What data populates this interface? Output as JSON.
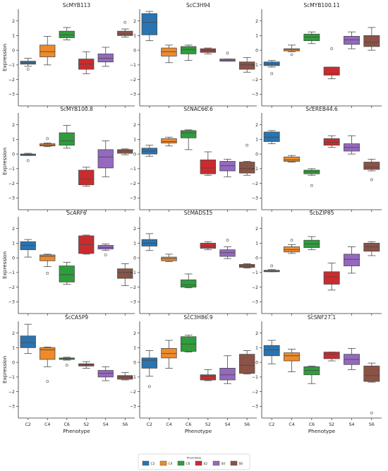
{
  "figure": {
    "y_axis_label": "Expression",
    "x_axis_label": "Phenotype",
    "legend_title": "Phenotype"
  },
  "colors": {
    "C2": "#2a74b0",
    "C4": "#ef8a2a",
    "C6": "#2e9e3b",
    "S2": "#cc2b2e",
    "S4": "#9469be",
    "S6": "#8a5346"
  },
  "chart_data": {
    "type": "box",
    "categories": [
      "C2",
      "C4",
      "C6",
      "S2",
      "S4",
      "S6"
    ],
    "ylim": [
      -3.8,
      2.8
    ],
    "yticks": [
      2,
      1,
      0,
      -1,
      -2,
      -3
    ],
    "grid": false,
    "legend": {
      "position": "bottom-center",
      "entries": [
        "C2",
        "C4",
        "C6",
        "S2",
        "S4",
        "S6"
      ]
    },
    "panels": [
      {
        "title": "ScMYB113",
        "boxes": [
          {
            "q1": -0.95,
            "median": -0.85,
            "q3": -0.75,
            "whislo": -1.1,
            "whishi": -0.55,
            "fliers": [
              -1.3
            ]
          },
          {
            "q1": -0.45,
            "median": -0.1,
            "q3": 0.35,
            "whislo": -1.0,
            "whishi": 0.95,
            "fliers": []
          },
          {
            "q1": 0.85,
            "median": 1.05,
            "q3": 1.3,
            "whislo": 0.7,
            "whishi": 1.55,
            "fliers": []
          },
          {
            "q1": -1.3,
            "median": -0.95,
            "q3": -0.6,
            "whislo": -1.6,
            "whishi": -0.1,
            "fliers": []
          },
          {
            "q1": -0.8,
            "median": -0.55,
            "q3": -0.25,
            "whislo": -1.1,
            "whishi": 0.2,
            "fliers": []
          },
          {
            "q1": 1.0,
            "median": 1.1,
            "q3": 1.3,
            "whislo": 0.9,
            "whishi": 1.45,
            "fliers": [
              1.9
            ]
          }
        ]
      },
      {
        "title": "ScC3H94",
        "boxes": [
          {
            "q1": 1.05,
            "median": 1.9,
            "q3": 2.5,
            "whislo": 0.65,
            "whishi": 2.65,
            "fliers": []
          },
          {
            "q1": -0.4,
            "median": -0.1,
            "q3": 0.15,
            "whislo": -0.85,
            "whishi": 0.35,
            "fliers": []
          },
          {
            "q1": -0.25,
            "median": 0.05,
            "q3": 0.25,
            "whislo": -0.7,
            "whishi": 0.35,
            "fliers": []
          },
          {
            "q1": -0.15,
            "median": 0.0,
            "q3": 0.1,
            "whislo": -0.25,
            "whishi": 0.15,
            "fliers": []
          },
          {
            "q1": -0.75,
            "median": -0.68,
            "q3": -0.6,
            "whislo": -0.75,
            "whishi": -0.6,
            "fliers": [
              -0.2
            ]
          },
          {
            "q1": -1.3,
            "median": -1.0,
            "q3": -0.8,
            "whislo": -1.5,
            "whishi": -0.5,
            "fliers": []
          }
        ]
      },
      {
        "title": "ScMYB100.11",
        "boxes": [
          {
            "q1": -1.05,
            "median": -0.95,
            "q3": -0.8,
            "whislo": -1.15,
            "whishi": -0.7,
            "fliers": [
              -1.6
            ]
          },
          {
            "q1": -0.05,
            "median": 0.05,
            "q3": 0.1,
            "whislo": -0.1,
            "whishi": 0.35,
            "fliers": [
              -0.3
            ]
          },
          {
            "q1": 0.65,
            "median": 0.9,
            "q3": 1.1,
            "whislo": 0.45,
            "whishi": 1.25,
            "fliers": []
          },
          {
            "q1": -1.7,
            "median": -1.6,
            "q3": -1.15,
            "whislo": -1.95,
            "whishi": -1.15,
            "fliers": [
              0.1
            ]
          },
          {
            "q1": 0.4,
            "median": 0.7,
            "q3": 0.95,
            "whislo": 0.1,
            "whishi": 1.25,
            "fliers": []
          },
          {
            "q1": 0.25,
            "median": 0.55,
            "q3": 1.0,
            "whislo": 0.0,
            "whishi": 1.55,
            "fliers": []
          }
        ]
      },
      {
        "title": "ScMYB100.8",
        "boxes": [
          {
            "q1": -0.1,
            "median": -0.05,
            "q3": 0.0,
            "whislo": -0.1,
            "whishi": 0.05,
            "fliers": [
              -0.45
            ]
          },
          {
            "q1": 0.55,
            "median": 0.62,
            "q3": 0.7,
            "whislo": 0.5,
            "whishi": 0.75,
            "fliers": [
              1.05
            ]
          },
          {
            "q1": 0.6,
            "median": 0.9,
            "q3": 1.45,
            "whislo": 0.4,
            "whishi": 1.95,
            "fliers": []
          },
          {
            "q1": -2.1,
            "median": -1.7,
            "q3": -1.1,
            "whislo": -2.2,
            "whishi": -0.9,
            "fliers": []
          },
          {
            "q1": -0.95,
            "median": -0.2,
            "q3": 0.3,
            "whislo": -1.55,
            "whishi": 0.9,
            "fliers": []
          },
          {
            "q1": 0.05,
            "median": 0.2,
            "q3": 0.3,
            "whislo": -0.05,
            "whishi": 0.35,
            "fliers": []
          }
        ]
      },
      {
        "title": "ScNAC66.6",
        "boxes": [
          {
            "q1": 0.0,
            "median": 0.2,
            "q3": 0.4,
            "whislo": -0.15,
            "whishi": 0.6,
            "fliers": []
          },
          {
            "q1": 0.75,
            "median": 0.85,
            "q3": 1.05,
            "whislo": 0.55,
            "whishi": 1.15,
            "fliers": []
          },
          {
            "q1": 1.1,
            "median": 1.45,
            "q3": 1.6,
            "whislo": 0.3,
            "whishi": 1.65,
            "fliers": []
          },
          {
            "q1": -1.35,
            "median": -0.95,
            "q3": -0.4,
            "whislo": -1.45,
            "whishi": 0.15,
            "fliers": []
          },
          {
            "q1": -1.15,
            "median": -0.8,
            "q3": -0.5,
            "whislo": -1.55,
            "whishi": -0.35,
            "fliers": []
          },
          {
            "q1": -1.3,
            "median": -1.0,
            "q3": -0.55,
            "whislo": -1.45,
            "whishi": -0.5,
            "fliers": [
              0.6
            ]
          }
        ]
      },
      {
        "title": "ScEREB44.6",
        "boxes": [
          {
            "q1": 0.85,
            "median": 1.15,
            "q3": 1.5,
            "whislo": 0.7,
            "whishi": 1.6,
            "fliers": []
          },
          {
            "q1": -0.5,
            "median": -0.4,
            "q3": -0.2,
            "whislo": -0.55,
            "whishi": -0.1,
            "fliers": []
          },
          {
            "q1": -1.35,
            "median": -1.2,
            "q3": -1.1,
            "whislo": -1.45,
            "whishi": -1.0,
            "fliers": [
              -2.15
            ]
          },
          {
            "q1": 0.6,
            "median": 0.8,
            "q3": 1.05,
            "whislo": 0.45,
            "whishi": 1.25,
            "fliers": []
          },
          {
            "q1": 0.2,
            "median": 0.45,
            "q3": 0.7,
            "whislo": 0.0,
            "whishi": 1.25,
            "fliers": []
          },
          {
            "q1": -1.05,
            "median": -0.9,
            "q3": -0.55,
            "whislo": -1.15,
            "whishi": -0.35,
            "fliers": [
              -1.75
            ]
          }
        ]
      },
      {
        "title": "ScARF6",
        "boxes": [
          {
            "q1": 0.55,
            "median": 0.85,
            "q3": 1.1,
            "whislo": 0.05,
            "whishi": 1.25,
            "fliers": []
          },
          {
            "q1": -0.2,
            "median": 0.1,
            "q3": 0.2,
            "whislo": -0.6,
            "whishi": 0.25,
            "fliers": [
              -1.05
            ]
          },
          {
            "q1": -1.65,
            "median": -1.15,
            "q3": -0.55,
            "whislo": -1.8,
            "whishi": -0.3,
            "fliers": []
          },
          {
            "q1": 0.3,
            "median": 0.9,
            "q3": 1.5,
            "whislo": 0.25,
            "whishi": 1.55,
            "fliers": []
          },
          {
            "q1": 0.6,
            "median": 0.7,
            "q3": 0.85,
            "whislo": 0.5,
            "whishi": 0.95,
            "fliers": [
              0.2
            ]
          },
          {
            "q1": -1.4,
            "median": -1.0,
            "q3": -0.75,
            "whislo": -1.9,
            "whishi": -0.4,
            "fliers": []
          }
        ]
      },
      {
        "title": "ScMADS15",
        "boxes": [
          {
            "q1": 0.8,
            "median": 1.0,
            "q3": 1.25,
            "whislo": 0.5,
            "whishi": 1.65,
            "fliers": []
          },
          {
            "q1": -0.2,
            "median": -0.05,
            "q3": 0.05,
            "whislo": -0.25,
            "whishi": 0.25,
            "fliers": []
          },
          {
            "q1": -2.0,
            "median": -1.85,
            "q3": -1.5,
            "whislo": -2.05,
            "whishi": -1.1,
            "fliers": []
          },
          {
            "q1": 0.65,
            "median": 0.8,
            "q3": 1.0,
            "whislo": 0.55,
            "whishi": 1.1,
            "fliers": []
          },
          {
            "q1": 0.1,
            "median": 0.35,
            "q3": 0.55,
            "whislo": -0.05,
            "whishi": 0.75,
            "fliers": [
              1.2
            ]
          },
          {
            "q1": -0.65,
            "median": -0.55,
            "q3": -0.45,
            "whislo": -0.7,
            "whishi": -0.4,
            "fliers": []
          }
        ]
      },
      {
        "title": "ScbZIP85",
        "boxes": [
          {
            "q1": -0.95,
            "median": -0.9,
            "q3": -0.85,
            "whislo": -0.95,
            "whishi": -0.8,
            "fliers": [
              -0.55
            ]
          },
          {
            "q1": 0.4,
            "median": 0.55,
            "q3": 0.75,
            "whislo": 0.3,
            "whishi": 0.9,
            "fliers": [
              1.2
            ]
          },
          {
            "q1": 0.7,
            "median": 0.95,
            "q3": 1.2,
            "whislo": 0.55,
            "whishi": 1.45,
            "fliers": []
          },
          {
            "q1": -1.8,
            "median": -1.3,
            "q3": -0.95,
            "whislo": -2.2,
            "whishi": -0.35,
            "fliers": []
          },
          {
            "q1": -0.55,
            "median": -0.1,
            "q3": 0.25,
            "whislo": -1.05,
            "whishi": 0.75,
            "fliers": []
          },
          {
            "q1": 0.45,
            "median": 0.75,
            "q3": 1.0,
            "whislo": 0.15,
            "whishi": 1.1,
            "fliers": []
          }
        ]
      },
      {
        "title": "ScCA5P9",
        "boxes": [
          {
            "q1": 1.0,
            "median": 1.35,
            "q3": 1.8,
            "whislo": 0.6,
            "whishi": 2.6,
            "fliers": []
          },
          {
            "q1": 0.2,
            "median": 0.85,
            "q3": 1.0,
            "whislo": -0.3,
            "whishi": 1.05,
            "fliers": [
              -1.3
            ]
          },
          {
            "q1": 0.2,
            "median": 0.25,
            "q3": 0.3,
            "whislo": 0.15,
            "whishi": 0.35,
            "fliers": [
              -0.2
            ]
          },
          {
            "q1": -0.25,
            "median": -0.15,
            "q3": -0.1,
            "whislo": -0.4,
            "whishi": 0.05,
            "fliers": []
          },
          {
            "q1": -1.0,
            "median": -0.75,
            "q3": -0.55,
            "whislo": -1.25,
            "whishi": -0.3,
            "fliers": []
          },
          {
            "q1": -1.15,
            "median": -1.0,
            "q3": -0.9,
            "whislo": -1.2,
            "whishi": -0.7,
            "fliers": []
          }
        ]
      },
      {
        "title": "ScC3H86.9",
        "boxes": [
          {
            "q1": -0.4,
            "median": 0.15,
            "q3": 0.3,
            "whislo": -0.95,
            "whishi": 0.8,
            "fliers": [
              -1.65
            ]
          },
          {
            "q1": 0.3,
            "median": 0.6,
            "q3": 0.95,
            "whislo": -0.4,
            "whishi": 1.5,
            "fliers": []
          },
          {
            "q1": 0.75,
            "median": 1.25,
            "q3": 1.75,
            "whislo": 0.7,
            "whishi": 1.85,
            "fliers": []
          },
          {
            "q1": -1.2,
            "median": -0.95,
            "q3": -0.85,
            "whislo": -1.25,
            "whishi": -0.5,
            "fliers": []
          },
          {
            "q1": -1.2,
            "median": -0.85,
            "q3": -0.4,
            "whislo": -1.45,
            "whishi": 0.45,
            "fliers": []
          },
          {
            "q1": -0.75,
            "median": -0.2,
            "q3": 0.55,
            "whislo": -0.8,
            "whishi": 0.8,
            "fliers": []
          }
        ]
      },
      {
        "title": "ScSNF27.1",
        "boxes": [
          {
            "q1": 0.45,
            "median": 0.85,
            "q3": 1.15,
            "whislo": -0.1,
            "whishi": 1.5,
            "fliers": []
          },
          {
            "q1": 0.1,
            "median": 0.45,
            "q3": 0.65,
            "whislo": -0.65,
            "whishi": 0.9,
            "fliers": []
          },
          {
            "q1": -0.85,
            "median": -0.55,
            "q3": -0.3,
            "whislo": -1.45,
            "whishi": -0.25,
            "fliers": []
          },
          {
            "q1": 0.25,
            "median": 0.55,
            "q3": 0.7,
            "whislo": 0.1,
            "whishi": 0.7,
            "fliers": []
          },
          {
            "q1": -0.15,
            "median": 0.2,
            "q3": 0.55,
            "whislo": -0.5,
            "whishi": 0.95,
            "fliers": []
          },
          {
            "q1": -1.3,
            "median": -0.9,
            "q3": -0.25,
            "whislo": -1.35,
            "whishi": -0.05,
            "fliers": [
              -3.45
            ]
          }
        ]
      }
    ]
  }
}
